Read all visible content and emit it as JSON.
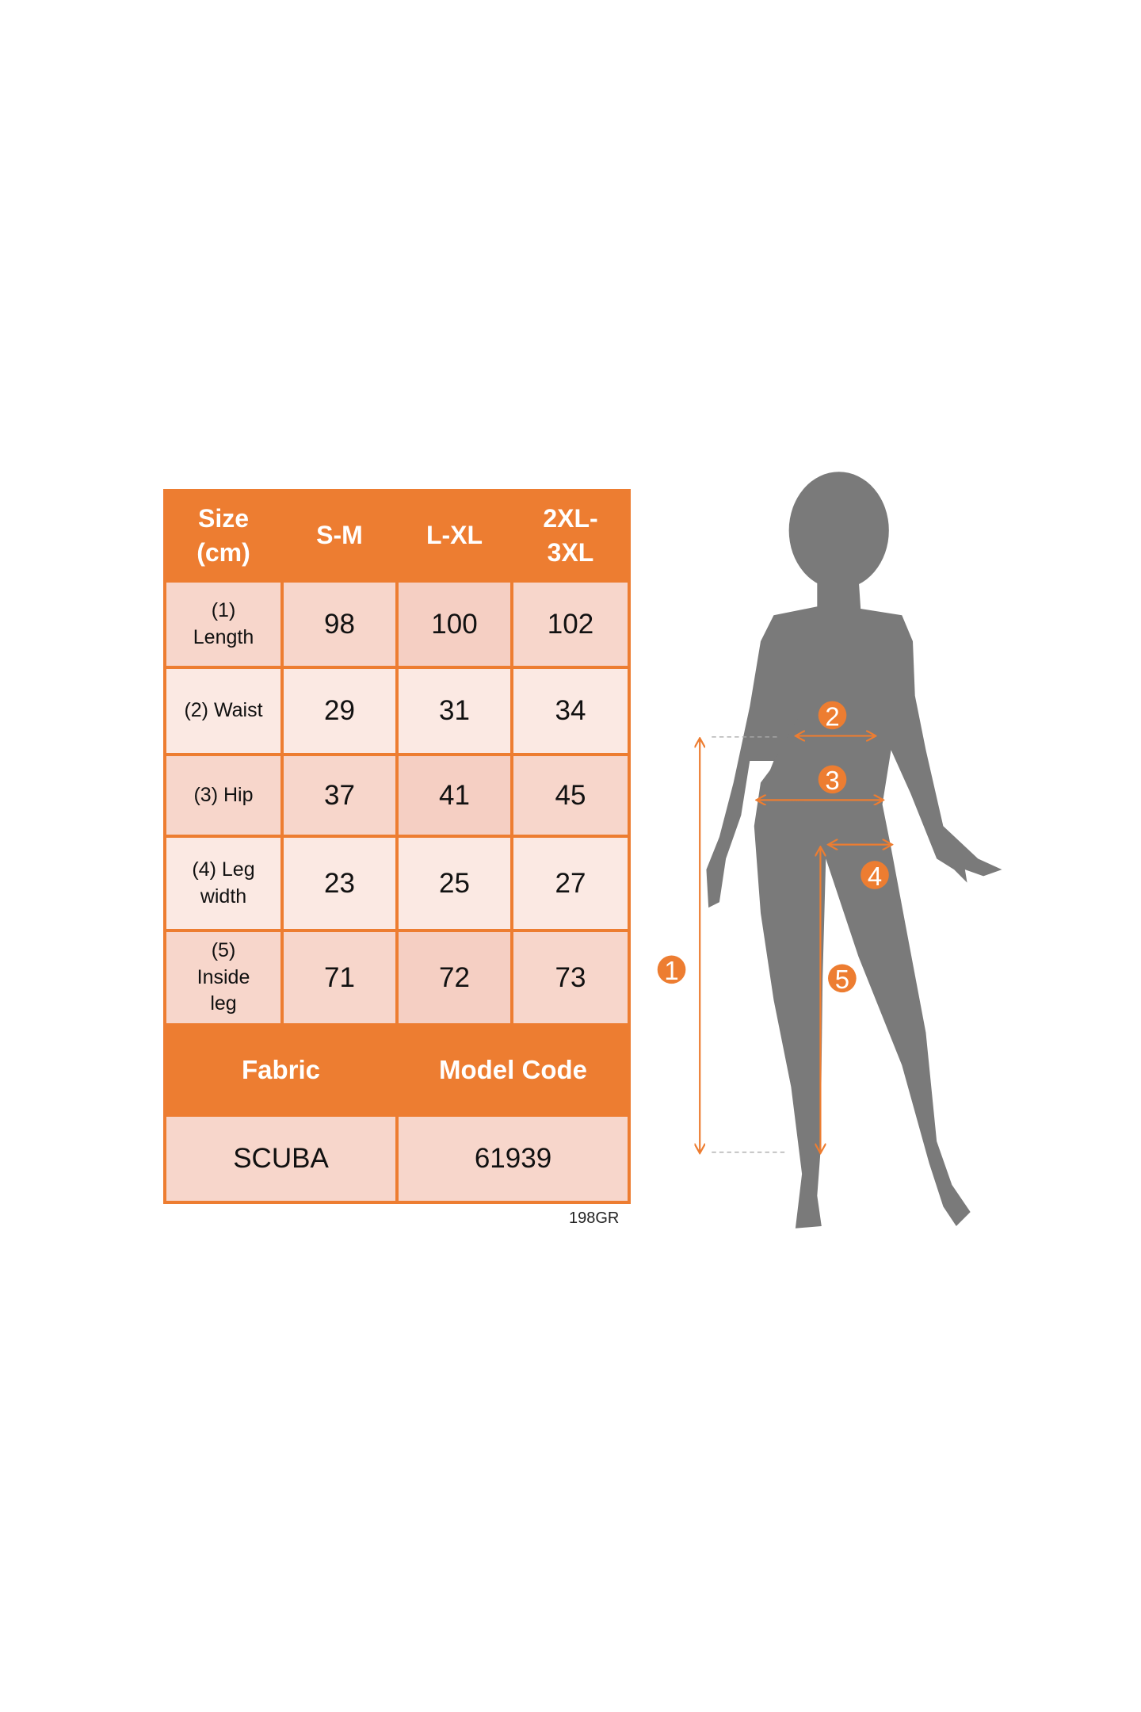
{
  "table": {
    "header": [
      "Size (cm)",
      "S-M",
      "L-XL",
      "2XL-3XL"
    ],
    "rows": [
      {
        "label": "(1) Length",
        "values": [
          "98",
          "100",
          "102"
        ]
      },
      {
        "label": "(2) Waist",
        "values": [
          "29",
          "31",
          "34"
        ]
      },
      {
        "label": "(3) Hip",
        "values": [
          "37",
          "41",
          "45"
        ]
      },
      {
        "label": "(4) Leg width",
        "values": [
          "23",
          "25",
          "27"
        ]
      },
      {
        "label": "(5) Inside leg",
        "values": [
          "71",
          "72",
          "73"
        ]
      }
    ],
    "fabric_label": "Fabric",
    "model_code_label": "Model Code",
    "fabric_value": "SCUBA",
    "model_code_value": "61939"
  },
  "code_note": "198GR",
  "figure": {
    "markers": [
      "1",
      "2",
      "3",
      "4",
      "5"
    ]
  },
  "colors": {
    "accent": "#ED7D31",
    "row_dark": "#F7D6CB",
    "row_light": "#FBE9E3",
    "silhouette": "#7A7A7A"
  }
}
